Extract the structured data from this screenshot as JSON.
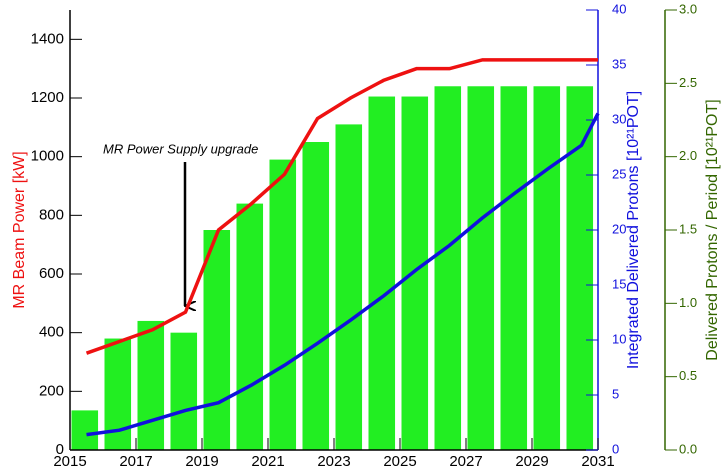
{
  "chart_data": {
    "type": "bar-line",
    "annotation": "MR Power Supply upgrade",
    "ylabel": "MR Beam Power [kW]",
    "y2label": "Integrated Delivered Protons [10²¹POT]",
    "y3label": "Delivered Protons / Period [10²¹POT]",
    "xlim": [
      2015,
      2031
    ],
    "xticks": [
      2015,
      2017,
      2019,
      2021,
      2023,
      2025,
      2027,
      2029,
      2031
    ],
    "ylim": [
      0,
      1500
    ],
    "yticks": [
      0,
      200,
      400,
      600,
      800,
      1000,
      1200,
      1400
    ],
    "y2lim": [
      0,
      40
    ],
    "y2ticks": [
      0,
      5,
      10,
      15,
      20,
      25,
      30,
      35,
      40
    ],
    "y3lim": [
      0,
      3
    ],
    "y3ticks": [
      {
        "value": 0,
        "label": "0.0"
      },
      {
        "value": 0.5,
        "label": "0.5"
      },
      {
        "value": 1,
        "label": "1.0"
      },
      {
        "value": 1.5,
        "label": "1.5"
      },
      {
        "value": 2,
        "label": "2.0"
      },
      {
        "value": 2.5,
        "label": "2.5"
      },
      {
        "value": 3,
        "label": "3.0"
      }
    ],
    "series": [
      {
        "type": "bar",
        "axis": "y3",
        "color": "#22ee22",
        "x": [
          2015,
          2016,
          2017,
          2018,
          2019,
          2020,
          2021,
          2022,
          2023,
          2024,
          2025,
          2026,
          2027,
          2028,
          2029,
          2030
        ],
        "values": [
          0.27,
          0.76,
          0.88,
          0.8,
          1.5,
          1.68,
          1.98,
          2.1,
          2.22,
          2.41,
          2.41,
          2.48,
          2.48,
          2.48,
          2.48,
          2.48
        ]
      },
      {
        "type": "line",
        "axis": "y",
        "color": "#ee1111",
        "x": [
          2015.5,
          2016.5,
          2017.5,
          2018.5,
          2019.5,
          2020.5,
          2021.5,
          2022.5,
          2023.5,
          2024.5,
          2025.5,
          2026.5,
          2027.5,
          2031
        ],
        "values": [
          330,
          370,
          410,
          470,
          750,
          840,
          940,
          1130,
          1200,
          1260,
          1300,
          1300,
          1330,
          1330
        ]
      },
      {
        "type": "line",
        "axis": "y2",
        "color": "#1111dd",
        "x": [
          2015.5,
          2016.5,
          2017.5,
          2018.5,
          2019.5,
          2020.5,
          2021.5,
          2022.5,
          2023.5,
          2024.5,
          2025.5,
          2026.5,
          2027.5,
          2028.5,
          2029.5,
          2030.5,
          2031
        ],
        "values": [
          1.4,
          1.8,
          2.7,
          3.6,
          4.3,
          5.9,
          7.7,
          9.7,
          11.8,
          14,
          16.4,
          18.6,
          21.1,
          23.4,
          25.6,
          27.7,
          30.6
        ]
      }
    ]
  }
}
